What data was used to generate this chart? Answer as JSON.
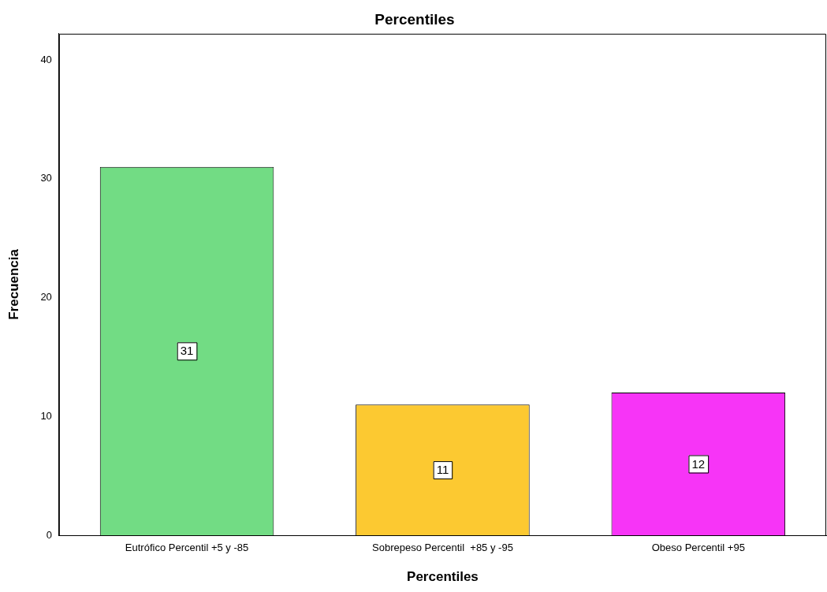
{
  "chart_data": {
    "type": "bar",
    "title": "Percentiles",
    "xlabel": "Percentiles",
    "ylabel": "Frecuencia",
    "categories": [
      "Eutrófico Percentil +5 y -85",
      "Sobrepeso Percentil  +85 y -95",
      "Obeso Percentil +95"
    ],
    "values": [
      31,
      11,
      12
    ],
    "colors": [
      "#72dc84",
      "#fcc931",
      "#f734f7"
    ],
    "ylim": [
      0,
      42.2
    ],
    "yticks": [
      0,
      10,
      20,
      30,
      40
    ],
    "grid": false,
    "legend": false,
    "data_labels": true
  }
}
